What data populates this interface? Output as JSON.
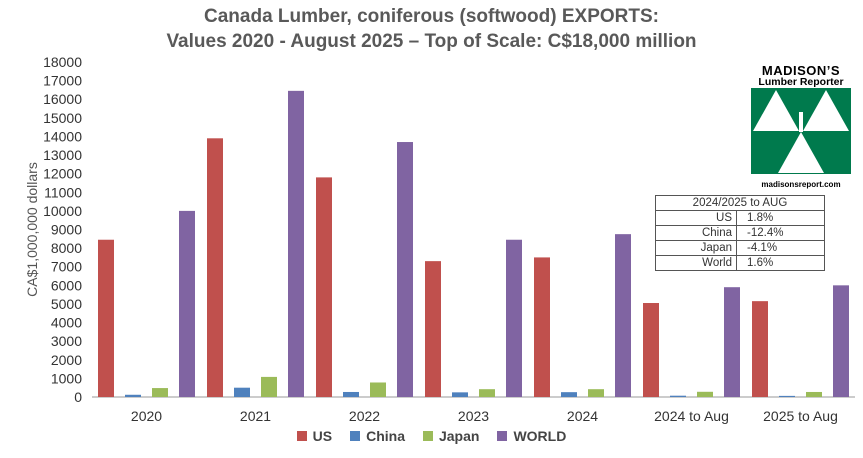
{
  "title_line1": "Canada Lumber, coniferous (softwood) EXPORTS:",
  "title_line2": "Values 2020 - August 2025 – Top of Scale: C$18,000 million",
  "logo": {
    "name": "MADISON’S",
    "subtitle": "Lumber Reporter",
    "url": "madisonsreport.com",
    "color": "#007a4d"
  },
  "stats_table": {
    "header": "2024/2025 to AUG",
    "rows": [
      {
        "label": "US",
        "value": "1.8%"
      },
      {
        "label": "China",
        "value": "-12.4%"
      },
      {
        "label": "Japan",
        "value": "-4.1%"
      },
      {
        "label": "World",
        "value": "1.6%"
      }
    ]
  },
  "chart_data": {
    "type": "bar",
    "categories": [
      "2020",
      "2021",
      "2022",
      "2023",
      "2024",
      "2024 to Aug",
      "2025 to Aug"
    ],
    "series": [
      {
        "name": "US",
        "color": "#c0504d",
        "values": [
          8450,
          13900,
          11800,
          7300,
          7500,
          5050,
          5150
        ]
      },
      {
        "name": "China",
        "color": "#4f81bd",
        "values": [
          120,
          500,
          270,
          250,
          260,
          70,
          60
        ]
      },
      {
        "name": "Japan",
        "color": "#9bbb59",
        "values": [
          480,
          1080,
          780,
          420,
          420,
          280,
          270
        ]
      },
      {
        "name": "WORLD",
        "color": "#8064a2",
        "values": [
          10000,
          16450,
          13700,
          8450,
          8750,
          5900,
          6000
        ]
      }
    ],
    "title": "Canada Lumber, coniferous (softwood) EXPORTS: Values 2020 - August 2025 – Top of Scale: C$18,000 million",
    "xlabel": "",
    "ylabel": "CA$1,000,000 dollars",
    "ylim": [
      0,
      18000
    ],
    "yticks": [
      0,
      1000,
      2000,
      3000,
      4000,
      5000,
      6000,
      7000,
      8000,
      9000,
      10000,
      11000,
      12000,
      13000,
      14000,
      15000,
      16000,
      17000,
      18000
    ],
    "grid": false,
    "legend": "bottom"
  }
}
